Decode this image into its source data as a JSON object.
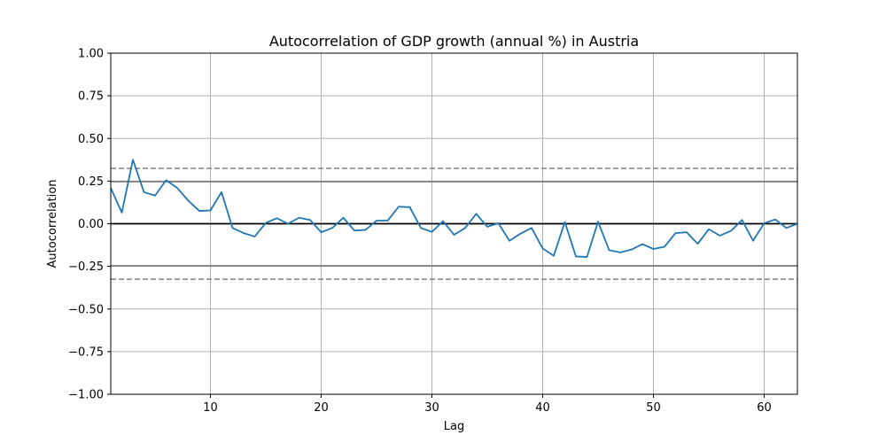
{
  "chart_data": {
    "type": "line",
    "title": "Autocorrelation of GDP growth (annual %) in Austria",
    "xlabel": "Lag",
    "ylabel": "Autocorrelation",
    "xlim": [
      1,
      63
    ],
    "ylim": [
      -1.0,
      1.0
    ],
    "grid": true,
    "x_ticks": [
      10,
      20,
      30,
      40,
      50,
      60
    ],
    "x_tick_labels": [
      "10",
      "20",
      "30",
      "40",
      "50",
      "60"
    ],
    "y_ticks": [
      -1.0,
      -0.75,
      -0.5,
      -0.25,
      0.0,
      0.25,
      0.5,
      0.75,
      1.0
    ],
    "y_tick_labels": [
      "−1.00",
      "−0.75",
      "−0.50",
      "−0.25",
      "0.00",
      "0.25",
      "0.50",
      "0.75",
      "1.00"
    ],
    "reference_lines": [
      {
        "y": 0.0,
        "style": "solid",
        "color": "#000000"
      },
      {
        "y": 0.247,
        "style": "solid",
        "color": "#808080"
      },
      {
        "y": -0.247,
        "style": "solid",
        "color": "#808080"
      },
      {
        "y": 0.325,
        "style": "dashed",
        "color": "#808080"
      },
      {
        "y": -0.325,
        "style": "dashed",
        "color": "#808080"
      }
    ],
    "series": [
      {
        "color": "#1f77b4",
        "x": [
          1,
          2,
          3,
          4,
          5,
          6,
          7,
          8,
          9,
          10,
          11,
          12,
          13,
          14,
          15,
          16,
          17,
          18,
          19,
          20,
          21,
          22,
          23,
          24,
          25,
          26,
          27,
          28,
          29,
          30,
          31,
          32,
          33,
          34,
          35,
          36,
          37,
          38,
          39,
          40,
          41,
          42,
          43,
          44,
          45,
          46,
          47,
          48,
          49,
          50,
          51,
          52,
          53,
          54,
          55,
          56,
          57,
          58,
          59,
          60,
          61,
          62,
          63
        ],
        "values": [
          0.21,
          0.065,
          0.375,
          0.185,
          0.165,
          0.255,
          0.21,
          0.135,
          0.075,
          0.078,
          0.185,
          -0.025,
          -0.055,
          -0.075,
          0.005,
          0.032,
          0.0,
          0.035,
          0.022,
          -0.05,
          -0.025,
          0.035,
          -0.04,
          -0.036,
          0.018,
          0.018,
          0.1,
          0.097,
          -0.025,
          -0.048,
          0.015,
          -0.065,
          -0.025,
          0.058,
          -0.018,
          0.003,
          -0.1,
          -0.058,
          -0.025,
          -0.145,
          -0.188,
          0.01,
          -0.192,
          -0.195,
          0.012,
          -0.155,
          -0.168,
          -0.152,
          -0.12,
          -0.148,
          -0.135,
          -0.055,
          -0.05,
          -0.118,
          -0.032,
          -0.07,
          -0.042,
          0.022,
          -0.1,
          0.003,
          0.025,
          -0.025,
          0.0
        ]
      }
    ]
  }
}
